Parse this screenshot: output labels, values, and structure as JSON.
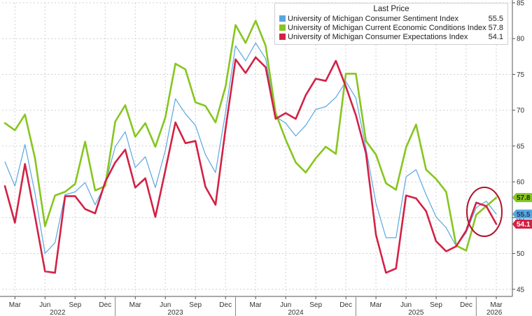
{
  "legend": {
    "header": "Last Price",
    "items": [
      {
        "label": "University of Michigan Consumer Sentiment Index",
        "value": "55.5",
        "color": "#5aa7e0"
      },
      {
        "label": "University of Michigan Current Economic Conditions Index",
        "value": "57.8",
        "color": "#86c61f"
      },
      {
        "label": "University of Michigan Consumer Expectations Index",
        "value": "54.1",
        "color": "#d32145"
      }
    ]
  },
  "chart_data": {
    "type": "line",
    "y_axis_position": "right",
    "ylim": [
      44,
      85
    ],
    "y_ticks": [
      45,
      50,
      55,
      60,
      65,
      70,
      75,
      80,
      85
    ],
    "grid": "dashed horizontal and vertical",
    "x_tick_labels": [
      "Mar",
      "Jun",
      "Sep",
      "Dec",
      "Mar",
      "Jun",
      "Sep",
      "Dec",
      "Mar",
      "Jun",
      "Sep",
      "Dec",
      "Mar",
      "Jun",
      "Sep",
      "Dec",
      "Mar"
    ],
    "year_labels": [
      "2022",
      "2023",
      "2024",
      "2025",
      "2026"
    ],
    "x": [
      "2022-02",
      "2022-03",
      "2022-04",
      "2022-05",
      "2022-06",
      "2022-07",
      "2022-08",
      "2022-09",
      "2022-10",
      "2022-11",
      "2022-12",
      "2023-01",
      "2023-02",
      "2023-03",
      "2023-04",
      "2023-05",
      "2023-06",
      "2023-07",
      "2023-08",
      "2023-09",
      "2023-10",
      "2023-11",
      "2023-12",
      "2024-01",
      "2024-02",
      "2024-03",
      "2024-04",
      "2024-05",
      "2024-06",
      "2024-07",
      "2024-08",
      "2024-09",
      "2024-10",
      "2024-11",
      "2024-12",
      "2025-01",
      "2025-02",
      "2025-03",
      "2025-04",
      "2025-05",
      "2025-06",
      "2025-07",
      "2025-08",
      "2025-09",
      "2025-10",
      "2025-11",
      "2025-12",
      "2026-01",
      "2026-02",
      "2026-03"
    ],
    "series": [
      {
        "name": "University of Michigan Consumer Sentiment Index",
        "color": "#5aa7e0",
        "last": 55.5,
        "values": [
          62.8,
          59.4,
          65.2,
          58.4,
          50.0,
          51.5,
          58.2,
          58.6,
          59.9,
          56.8,
          59.7,
          64.9,
          67.0,
          62.0,
          63.5,
          59.2,
          64.4,
          71.6,
          69.5,
          67.9,
          63.8,
          61.3,
          69.7,
          79.0,
          76.9,
          79.4,
          77.2,
          69.1,
          68.2,
          66.4,
          67.9,
          70.1,
          70.5,
          71.8,
          74.0,
          71.7,
          64.7,
          57.0,
          52.2,
          52.2,
          60.7,
          61.7,
          58.2,
          55.1,
          53.6,
          51.0,
          52.9,
          56.4,
          57.3,
          55.5
        ]
      },
      {
        "name": "University of Michigan Current Economic Conditions Index",
        "color": "#86c61f",
        "last": 57.8,
        "values": [
          68.2,
          67.2,
          69.4,
          63.3,
          53.8,
          58.1,
          58.6,
          59.7,
          65.6,
          58.8,
          59.4,
          68.4,
          70.7,
          66.3,
          68.2,
          64.9,
          69.0,
          76.5,
          75.7,
          71.1,
          70.6,
          68.3,
          73.3,
          81.9,
          79.4,
          82.5,
          79.0,
          69.6,
          65.9,
          62.7,
          61.3,
          63.3,
          64.9,
          63.9,
          75.1,
          75.1,
          65.7,
          63.8,
          59.8,
          58.9,
          64.8,
          68.0,
          61.7,
          60.4,
          58.6,
          51.1,
          50.4,
          55.4,
          56.6,
          57.8
        ]
      },
      {
        "name": "University of Michigan Consumer Expectations Index",
        "color": "#d32145",
        "last": 54.1,
        "values": [
          59.4,
          54.3,
          62.5,
          55.2,
          47.5,
          47.3,
          58.0,
          58.0,
          56.2,
          55.6,
          60.0,
          62.7,
          64.5,
          59.2,
          60.5,
          55.1,
          61.6,
          68.3,
          65.4,
          65.7,
          59.3,
          56.8,
          67.4,
          77.1,
          75.2,
          77.4,
          76.0,
          68.8,
          69.6,
          68.8,
          72.1,
          74.4,
          74.1,
          76.9,
          73.3,
          69.3,
          64.0,
          52.6,
          47.3,
          47.9,
          58.1,
          57.7,
          55.9,
          51.7,
          50.3,
          51.0,
          53.2,
          57.1,
          56.6,
          54.1
        ]
      }
    ]
  }
}
